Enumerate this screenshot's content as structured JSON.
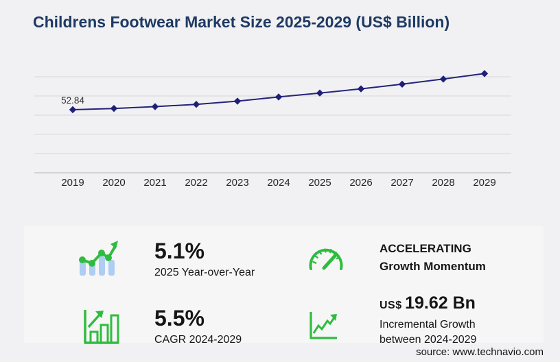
{
  "title": "Childrens Footwear Market Size 2025-2029 (US$ Billion)",
  "chart_data": {
    "type": "line",
    "title": "Childrens Footwear Market Size 2025-2029 (US$ Billion)",
    "categories": [
      "2019",
      "2020",
      "2021",
      "2022",
      "2023",
      "2024",
      "2025",
      "2026",
      "2027",
      "2028",
      "2029"
    ],
    "series": [
      {
        "name": "Market size (US$ Billion)",
        "values": [
          52.84,
          53.9,
          55.4,
          57.3,
          60.0,
          63.5,
          66.8,
          70.3,
          74.2,
          78.5,
          83.1
        ]
      }
    ],
    "data_labels": [
      {
        "index": 0,
        "text": "52.84"
      }
    ],
    "xlabel": "",
    "ylabel": "",
    "ylim": [
      0,
      87.3
    ],
    "grid": "horizontal",
    "legend": "none",
    "marker": "diamond"
  },
  "stats": [
    {
      "icon": "combo-chart-icon",
      "value": "5.1%",
      "label": "2025 Year-over-Year"
    },
    {
      "icon": "gauge-icon",
      "line1": "ACCELERATING",
      "line2": "Growth Momentum"
    },
    {
      "icon": "bar-growth-icon",
      "value": "5.5%",
      "label": "CAGR 2024-2029"
    },
    {
      "icon": "zigzag-growth-icon",
      "prefix": "US$",
      "value": "19.62 Bn",
      "line1": "Incremental Growth",
      "line2": "between 2024-2029"
    }
  ],
  "source": "source: www.technavio.com",
  "colors": {
    "page-bg": "#f1f1f3",
    "panel-bg": "#f6f6f7",
    "navy": "#1e3a64",
    "line": "#23237b",
    "marker": "#1f1f78",
    "grid": "#d8d8db",
    "axis": "#bfbfc4",
    "green": "#2fbc3e",
    "lightblue": "#aecdf2",
    "text": "#161616"
  }
}
